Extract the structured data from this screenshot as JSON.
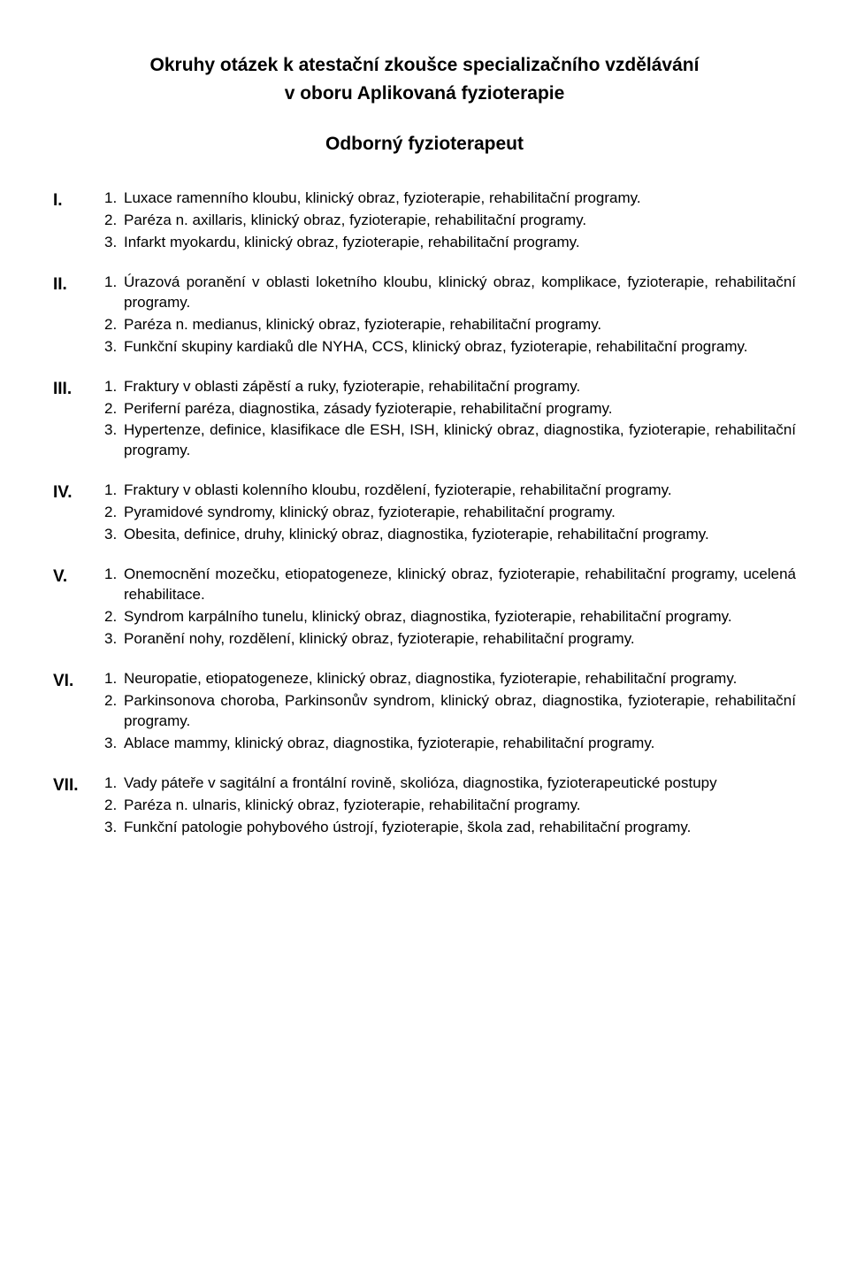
{
  "title_line1": "Okruhy otázek k atestační zkoušce specializačního vzdělávání",
  "title_line2": "v oboru Aplikovaná fyzioterapie",
  "subtitle": "Odborný fyzioterapeut",
  "sections": [
    {
      "roman": "I.",
      "items": [
        "Luxace ramenního kloubu, klinický obraz, fyzioterapie, rehabilitační programy.",
        "Paréza n. axillaris, klinický obraz, fyzioterapie, rehabilitační programy.",
        "Infarkt myokardu, klinický obraz, fyzioterapie, rehabilitační programy."
      ]
    },
    {
      "roman": "II.",
      "items": [
        "Úrazová poranění v oblasti loketního kloubu, klinický obraz, komplikace, fyzioterapie, rehabilitační programy.",
        "Paréza n. medianus, klinický obraz, fyzioterapie, rehabilitační programy.",
        "Funkční skupiny kardiaků dle NYHA, CCS, klinický obraz, fyzioterapie, rehabilitační programy."
      ]
    },
    {
      "roman": "III.",
      "items": [
        "Fraktury v oblasti zápěstí a ruky, fyzioterapie, rehabilitační programy.",
        "Periferní paréza, diagnostika, zásady fyzioterapie, rehabilitační programy.",
        "Hypertenze, definice, klasifikace dle ESH, ISH, klinický obraz, diagnostika, fyzioterapie, rehabilitační programy."
      ]
    },
    {
      "roman": "IV.",
      "items": [
        "Fraktury v oblasti kolenního kloubu, rozdělení, fyzioterapie, rehabilitační programy.",
        "Pyramidové syndromy, klinický obraz, fyzioterapie, rehabilitační programy.",
        "Obesita, definice, druhy, klinický obraz, diagnostika, fyzioterapie, rehabilitační programy."
      ]
    },
    {
      "roman": "V.",
      "items": [
        "Onemocnění mozečku, etiopatogeneze, klinický obraz, fyzioterapie, rehabilitační programy, ucelená rehabilitace.",
        "Syndrom karpálního tunelu, klinický obraz, diagnostika, fyzioterapie, rehabilitační programy.",
        "Poranění nohy, rozdělení, klinický obraz, fyzioterapie, rehabilitační programy."
      ]
    },
    {
      "roman": "VI.",
      "items": [
        "Neuropatie, etiopatogeneze, klinický obraz, diagnostika, fyzioterapie, rehabilitační programy.",
        "Parkinsonova choroba, Parkinsonův syndrom, klinický obraz, diagnostika, fyzioterapie, rehabilitační programy.",
        "Ablace mammy, klinický obraz, diagnostika, fyzioterapie, rehabilitační programy."
      ]
    },
    {
      "roman": "VII.",
      "items": [
        "Vady páteře v sagitální a frontální rovině, skolióza, diagnostika, fyzioterapeutické postupy",
        "Paréza n. ulnaris, klinický obraz, fyzioterapie, rehabilitační programy.",
        "Funkční patologie pohybového ústrojí, fyzioterapie, škola zad, rehabilitační programy."
      ]
    }
  ]
}
